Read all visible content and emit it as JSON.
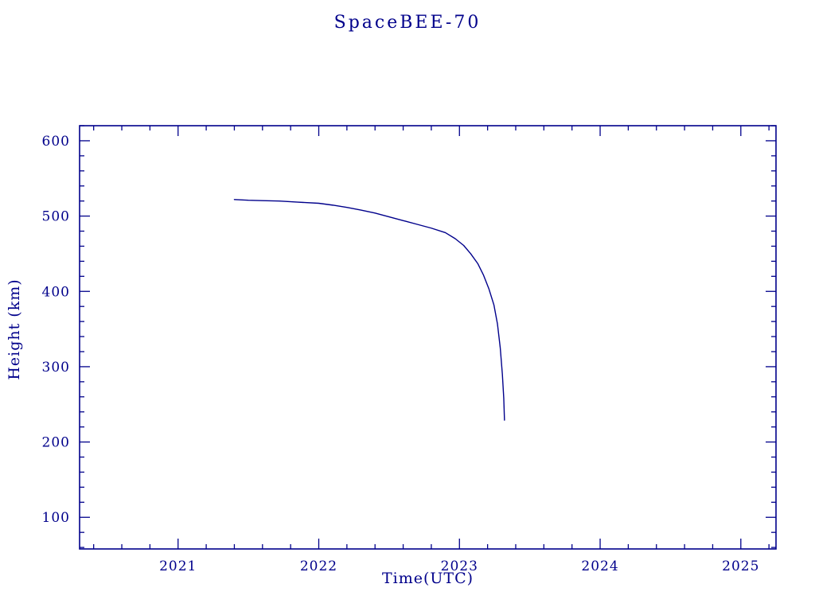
{
  "chart_data": {
    "type": "line",
    "title": "SpaceBEE-70",
    "xlabel": "Time(UTC)",
    "ylabel": "Height (km)",
    "xlim": [
      2020.3,
      2025.25
    ],
    "ylim": [
      58,
      620
    ],
    "x_ticks": [
      2021,
      2022,
      2023,
      2024,
      2025
    ],
    "y_ticks": [
      100,
      200,
      300,
      400,
      500,
      600
    ],
    "x_minor_step": 0.2,
    "y_minor_step": 20,
    "grid": false,
    "legend": "none",
    "accent_color": "#00008B",
    "background_color": "#ffffff",
    "series": [
      {
        "name": "orbital-height",
        "points": [
          [
            2021.4,
            522
          ],
          [
            2021.5,
            521
          ],
          [
            2021.6,
            520.5
          ],
          [
            2021.72,
            520
          ],
          [
            2021.85,
            518.5
          ],
          [
            2022.0,
            517
          ],
          [
            2022.1,
            514.5
          ],
          [
            2022.2,
            511.5
          ],
          [
            2022.3,
            508
          ],
          [
            2022.4,
            504
          ],
          [
            2022.5,
            499
          ],
          [
            2022.6,
            494
          ],
          [
            2022.7,
            489
          ],
          [
            2022.8,
            484
          ],
          [
            2022.9,
            478
          ],
          [
            2022.97,
            470
          ],
          [
            2023.03,
            461
          ],
          [
            2023.08,
            450
          ],
          [
            2023.13,
            437
          ],
          [
            2023.17,
            422
          ],
          [
            2023.21,
            403
          ],
          [
            2023.245,
            382
          ],
          [
            2023.27,
            357
          ],
          [
            2023.29,
            325
          ],
          [
            2023.305,
            290
          ],
          [
            2023.315,
            258
          ],
          [
            2023.32,
            229
          ]
        ]
      }
    ]
  }
}
